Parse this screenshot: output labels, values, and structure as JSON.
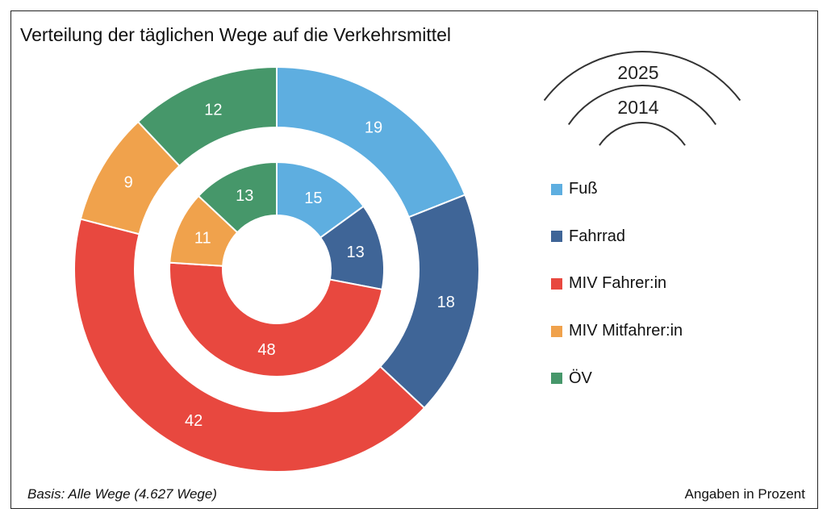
{
  "chart_data": {
    "type": "pie",
    "title": "Verteilung der täglichen Wege auf die Verkehrsmittel",
    "categories": [
      "Fuß",
      "Fahrrad",
      "MIV Fahrer:in",
      "MIV Mitfahrer:in",
      "ÖV"
    ],
    "colors": [
      "#5eaee0",
      "#3f6597",
      "#e8483f",
      "#f0a24c",
      "#46976a"
    ],
    "series": [
      {
        "name": "2025",
        "ring": "outer",
        "values": [
          19,
          18,
          42,
          9,
          12
        ]
      },
      {
        "name": "2014",
        "ring": "inner",
        "values": [
          15,
          13,
          48,
          11,
          13
        ]
      }
    ],
    "ring_legend": [
      "2025",
      "2014"
    ],
    "legend_placement": "right",
    "footnote": "Basis: Alle Wege (4.627 Wege)",
    "unit_note": "Angaben in Prozent"
  }
}
